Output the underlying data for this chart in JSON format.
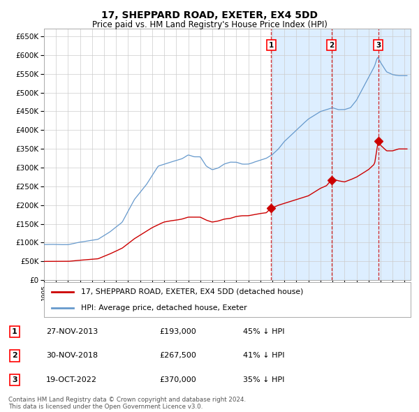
{
  "title": "17, SHEPPARD ROAD, EXETER, EX4 5DD",
  "subtitle": "Price paid vs. HM Land Registry's House Price Index (HPI)",
  "legend_label_red": "17, SHEPPARD ROAD, EXETER, EX4 5DD (detached house)",
  "legend_label_blue": "HPI: Average price, detached house, Exeter",
  "footer_line1": "Contains HM Land Registry data © Crown copyright and database right 2024.",
  "footer_line2": "This data is licensed under the Open Government Licence v3.0.",
  "transactions": [
    {
      "num": 1,
      "date": "27-NOV-2013",
      "date_decimal": 2013.9,
      "price": 193000,
      "label": "£193,000",
      "pct": "45% ↓ HPI"
    },
    {
      "num": 2,
      "date": "30-NOV-2018",
      "date_decimal": 2018.917,
      "price": 267500,
      "label": "£267,500",
      "pct": "41% ↓ HPI"
    },
    {
      "num": 3,
      "date": "19-OCT-2022",
      "date_decimal": 2022.8,
      "price": 370000,
      "label": "£370,000",
      "pct": "35% ↓ HPI"
    }
  ],
  "hpi_color": "#6699cc",
  "price_color": "#cc0000",
  "vline_color": "#cc0000",
  "shade_color": "#ddeeff",
  "background_color": "#ffffff",
  "grid_color": "#cccccc",
  "ylim": [
    0,
    670000
  ],
  "xlim_start": 1995.0,
  "xlim_end": 2025.5
}
